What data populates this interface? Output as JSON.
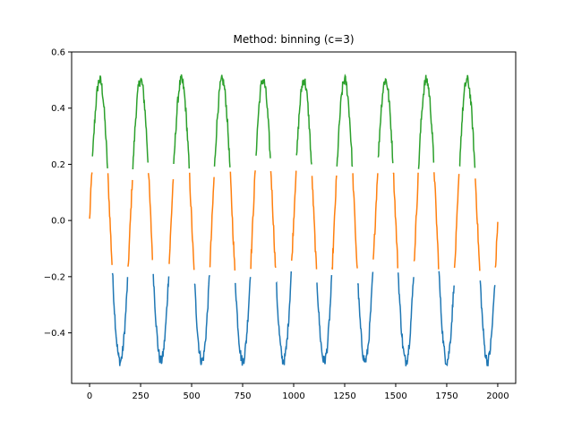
{
  "chart_data": {
    "type": "line",
    "title": "Method: binning (c=3)",
    "xlabel": "",
    "ylabel": "",
    "xlim": [
      -88,
      2088
    ],
    "ylim": [
      -0.58,
      0.6
    ],
    "grid": false,
    "legend": "none",
    "x_ticks": [
      0,
      250,
      500,
      750,
      1000,
      1250,
      1500,
      1750,
      2000
    ],
    "x_tick_labels": [
      "0",
      "250",
      "500",
      "750",
      "1000",
      "1250",
      "1500",
      "1750",
      "2000"
    ],
    "y_ticks": [
      -0.4,
      -0.2,
      0.0,
      0.2,
      0.4,
      0.6
    ],
    "y_tick_labels": [
      "−0.4",
      "−0.2",
      "0.0",
      "0.2",
      "0.4",
      "0.6"
    ],
    "signal": {
      "amplitude": 0.5,
      "period": 200,
      "phase_offset": 0,
      "noise": 0.02,
      "x_start": 0,
      "x_end": 2000,
      "step": 2
    },
    "bins": [
      -0.18,
      0.18
    ],
    "series": [
      {
        "bin": "low",
        "color": "#1f77b4"
      },
      {
        "bin": "mid",
        "color": "#ff7f0e"
      },
      {
        "bin": "high",
        "color": "#2ca02c"
      }
    ]
  }
}
